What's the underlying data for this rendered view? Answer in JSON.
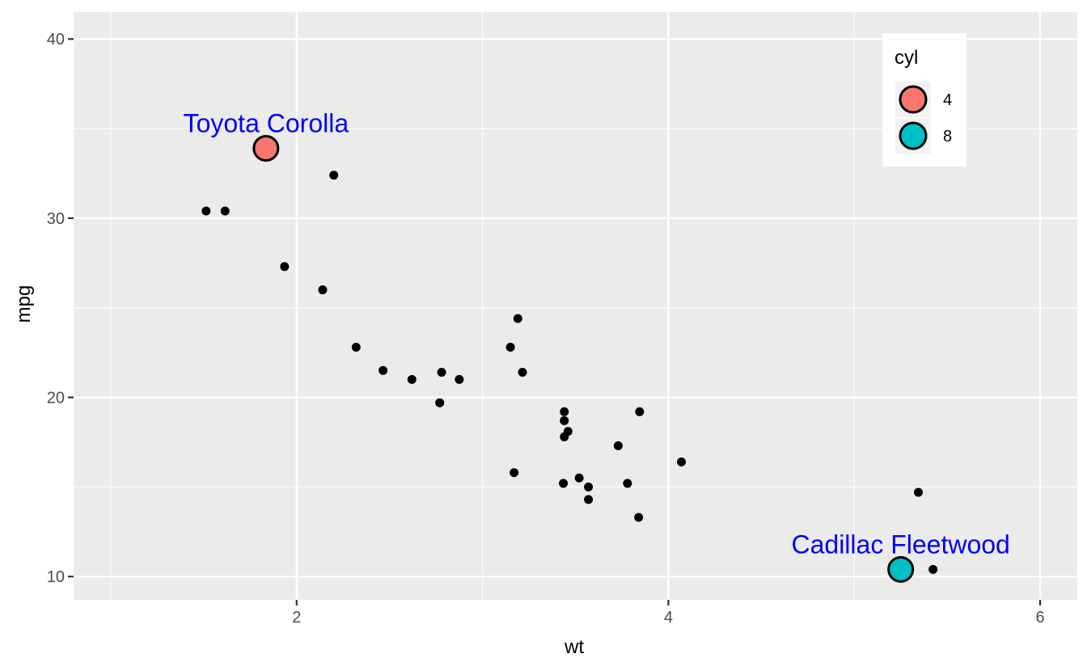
{
  "chart_data": {
    "type": "scatter",
    "xlabel": "wt",
    "ylabel": "mpg",
    "xlim": [
      0.8,
      6.2
    ],
    "ylim": [
      8.7,
      41.5
    ],
    "x_ticks": [
      2,
      4,
      6
    ],
    "y_ticks": [
      10,
      20,
      30,
      40
    ],
    "x_minor_ticks": [
      1,
      3,
      5
    ],
    "y_minor_ticks": [
      15,
      25,
      35
    ],
    "grid": true,
    "background": "#ebebeb",
    "point_color": "#000000",
    "points": [
      {
        "x": 1.513,
        "y": 30.4
      },
      {
        "x": 1.615,
        "y": 30.4
      },
      {
        "x": 1.935,
        "y": 27.3
      },
      {
        "x": 2.14,
        "y": 26.0
      },
      {
        "x": 2.2,
        "y": 32.4
      },
      {
        "x": 2.32,
        "y": 22.8
      },
      {
        "x": 2.465,
        "y": 21.5
      },
      {
        "x": 2.62,
        "y": 21.0
      },
      {
        "x": 2.77,
        "y": 19.7
      },
      {
        "x": 2.78,
        "y": 21.4
      },
      {
        "x": 2.875,
        "y": 21.0
      },
      {
        "x": 3.15,
        "y": 22.8
      },
      {
        "x": 3.17,
        "y": 15.8
      },
      {
        "x": 3.19,
        "y": 24.4
      },
      {
        "x": 3.215,
        "y": 21.4
      },
      {
        "x": 3.435,
        "y": 15.2
      },
      {
        "x": 3.44,
        "y": 18.7
      },
      {
        "x": 3.44,
        "y": 19.2
      },
      {
        "x": 3.44,
        "y": 17.8
      },
      {
        "x": 3.46,
        "y": 18.1
      },
      {
        "x": 3.52,
        "y": 15.5
      },
      {
        "x": 3.57,
        "y": 15.0
      },
      {
        "x": 3.57,
        "y": 14.3
      },
      {
        "x": 3.73,
        "y": 17.3
      },
      {
        "x": 3.78,
        "y": 15.2
      },
      {
        "x": 3.84,
        "y": 13.3
      },
      {
        "x": 3.845,
        "y": 19.2
      },
      {
        "x": 4.07,
        "y": 16.4
      },
      {
        "x": 5.345,
        "y": 14.7
      },
      {
        "x": 5.424,
        "y": 10.4
      }
    ],
    "highlighted": [
      {
        "label": "Toyota Corolla",
        "x": 1.835,
        "y": 33.9,
        "cyl": "4",
        "fill": "#f8766d",
        "label_color": "#0000ff"
      },
      {
        "label": "Cadillac Fleetwood",
        "x": 5.25,
        "y": 10.4,
        "cyl": "8",
        "fill": "#00bfc4",
        "label_color": "#0000ff"
      }
    ],
    "legend": {
      "title": "cyl",
      "placement": "top-right",
      "entries": [
        {
          "label": "4",
          "color": "#f8766d"
        },
        {
          "label": "8",
          "color": "#00bfc4"
        }
      ]
    }
  }
}
